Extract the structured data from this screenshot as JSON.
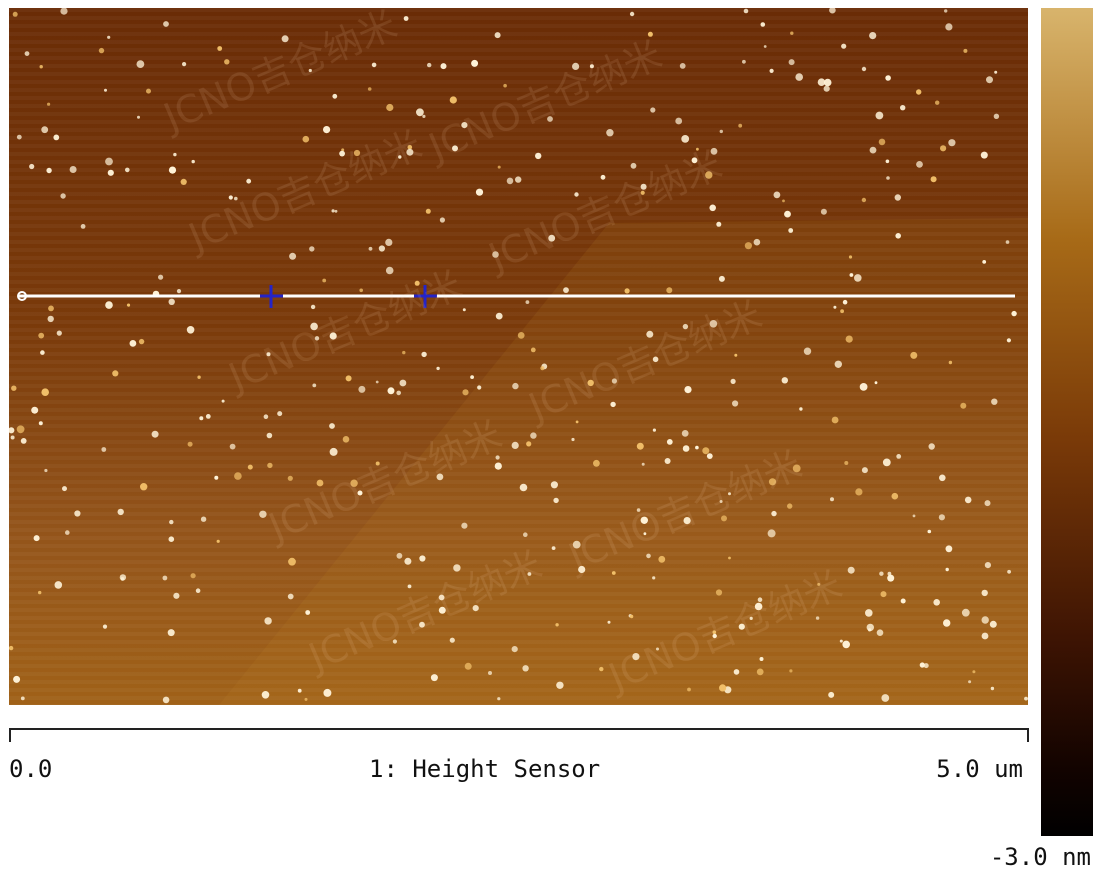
{
  "image": {
    "channel_label": "1: Height Sensor",
    "scale_min": "0.0",
    "scale_max": "5.0 um",
    "colorbar_min": "-3.0 nm",
    "watermark_text": "JCNO吉仓纳米",
    "colors": {
      "substrate_dark": "#6e3008",
      "substrate_light": "#a8671a",
      "particles": "#fff3d8",
      "profile_line": "#ffffff",
      "cursor_marker": "#2424c8"
    },
    "icons": [
      "profile-line",
      "cursor-marker-icon",
      "line-start-icon"
    ]
  }
}
